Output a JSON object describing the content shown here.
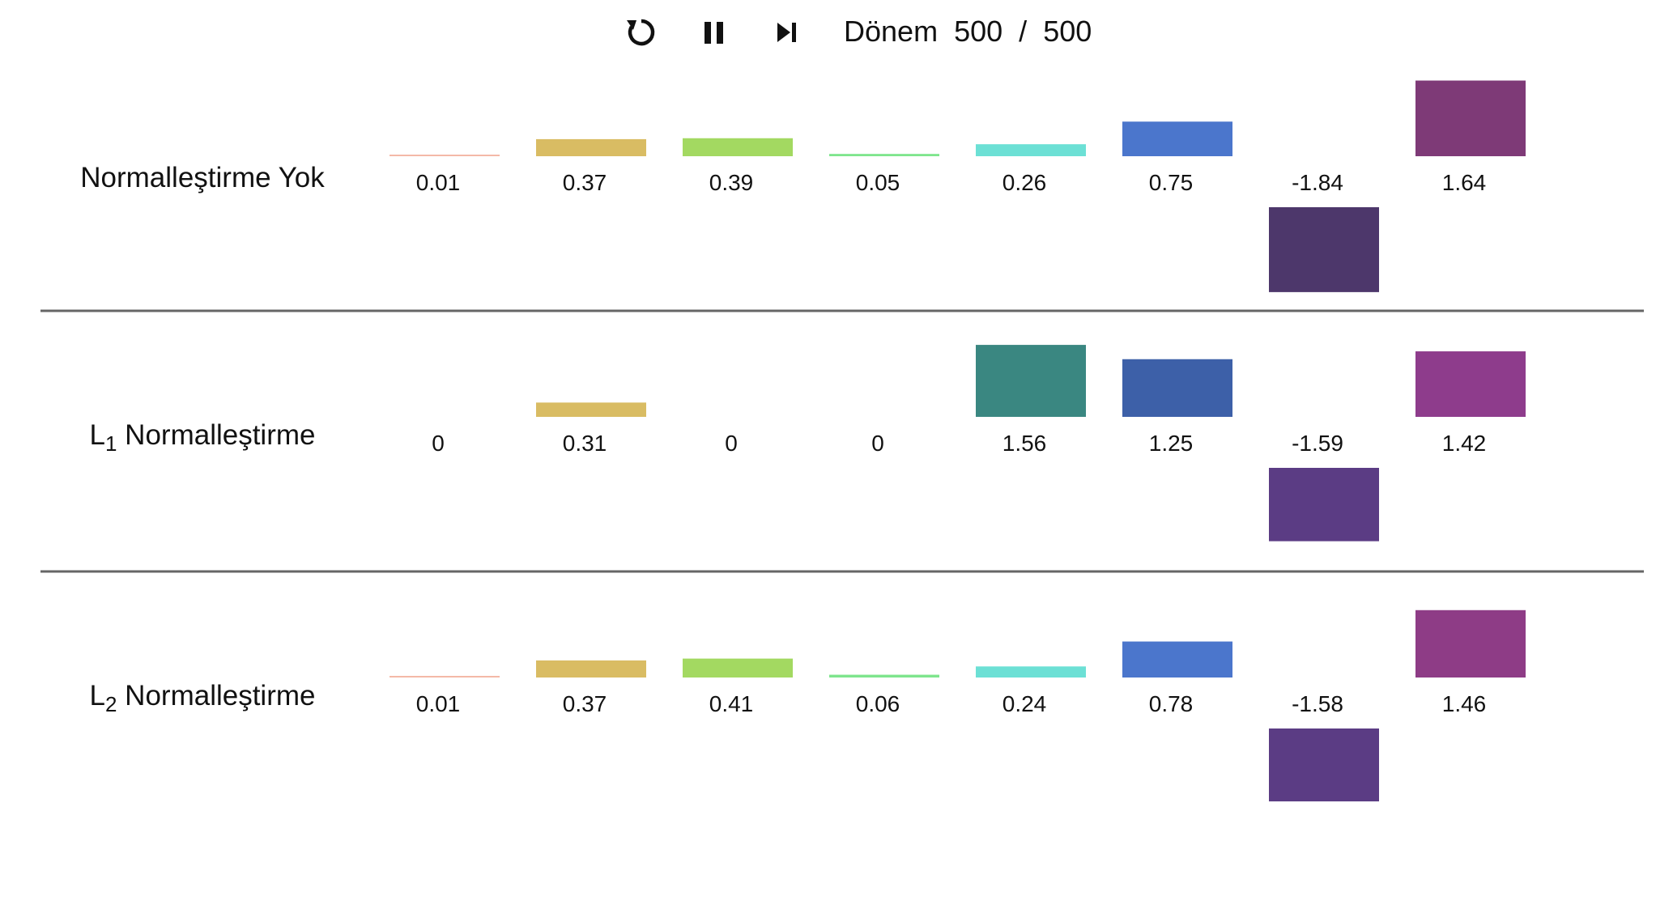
{
  "controls": {
    "reset_icon": "reset-icon",
    "pause_icon": "pause-icon",
    "step_icon": "step-forward-icon",
    "epoch_label": "Dönem",
    "epoch_current": "500",
    "epoch_separator": "/",
    "epoch_total": "500"
  },
  "rows": [
    {
      "label": "Normalleştirme Yok",
      "label_base": "",
      "label_sub": ""
    },
    {
      "label": "Normalleştirme",
      "label_base": "L",
      "label_sub": "1"
    },
    {
      "label": "Normalleştirme",
      "label_base": "L",
      "label_sub": "2"
    }
  ],
  "chart_data": {
    "type": "bar",
    "rows": [
      {
        "name": "Normalleştirme Yok",
        "values": [
          0.01,
          0.37,
          0.39,
          0.05,
          0.26,
          0.75,
          -1.84,
          1.64
        ],
        "labels": [
          "0.01",
          "0.37",
          "0.39",
          "0.05",
          "0.26",
          "0.75",
          "-1.84",
          "1.64"
        ],
        "colors": [
          "#f4b9a8",
          "#d9bc63",
          "#a3d961",
          "#7ee58d",
          "#6ce0d5",
          "#4b76cc",
          "#4d376b",
          "#7e3a77"
        ]
      },
      {
        "name": "L1 Normalleştirme",
        "values": [
          0,
          0.31,
          0,
          0,
          1.56,
          1.25,
          -1.59,
          1.42
        ],
        "labels": [
          "0",
          "0.31",
          "0",
          "0",
          "1.56",
          "1.25",
          "-1.59",
          "1.42"
        ],
        "colors": [
          "#f4b9a8",
          "#d9bc63",
          "#a3d961",
          "#7ee58d",
          "#3a8781",
          "#3d60a8",
          "#5b3c84",
          "#8e3c8c"
        ]
      },
      {
        "name": "L2 Normalleştirme",
        "values": [
          0.01,
          0.37,
          0.41,
          0.06,
          0.24,
          0.78,
          -1.58,
          1.46
        ],
        "labels": [
          "0.01",
          "0.37",
          "0.41",
          "0.06",
          "0.24",
          "0.78",
          "-1.58",
          "1.46"
        ],
        "colors": [
          "#f4b9a8",
          "#d9bc63",
          "#a3d961",
          "#7ee58d",
          "#6ce0d5",
          "#4b76cc",
          "#5b3c84",
          "#8e3c86"
        ]
      }
    ]
  }
}
